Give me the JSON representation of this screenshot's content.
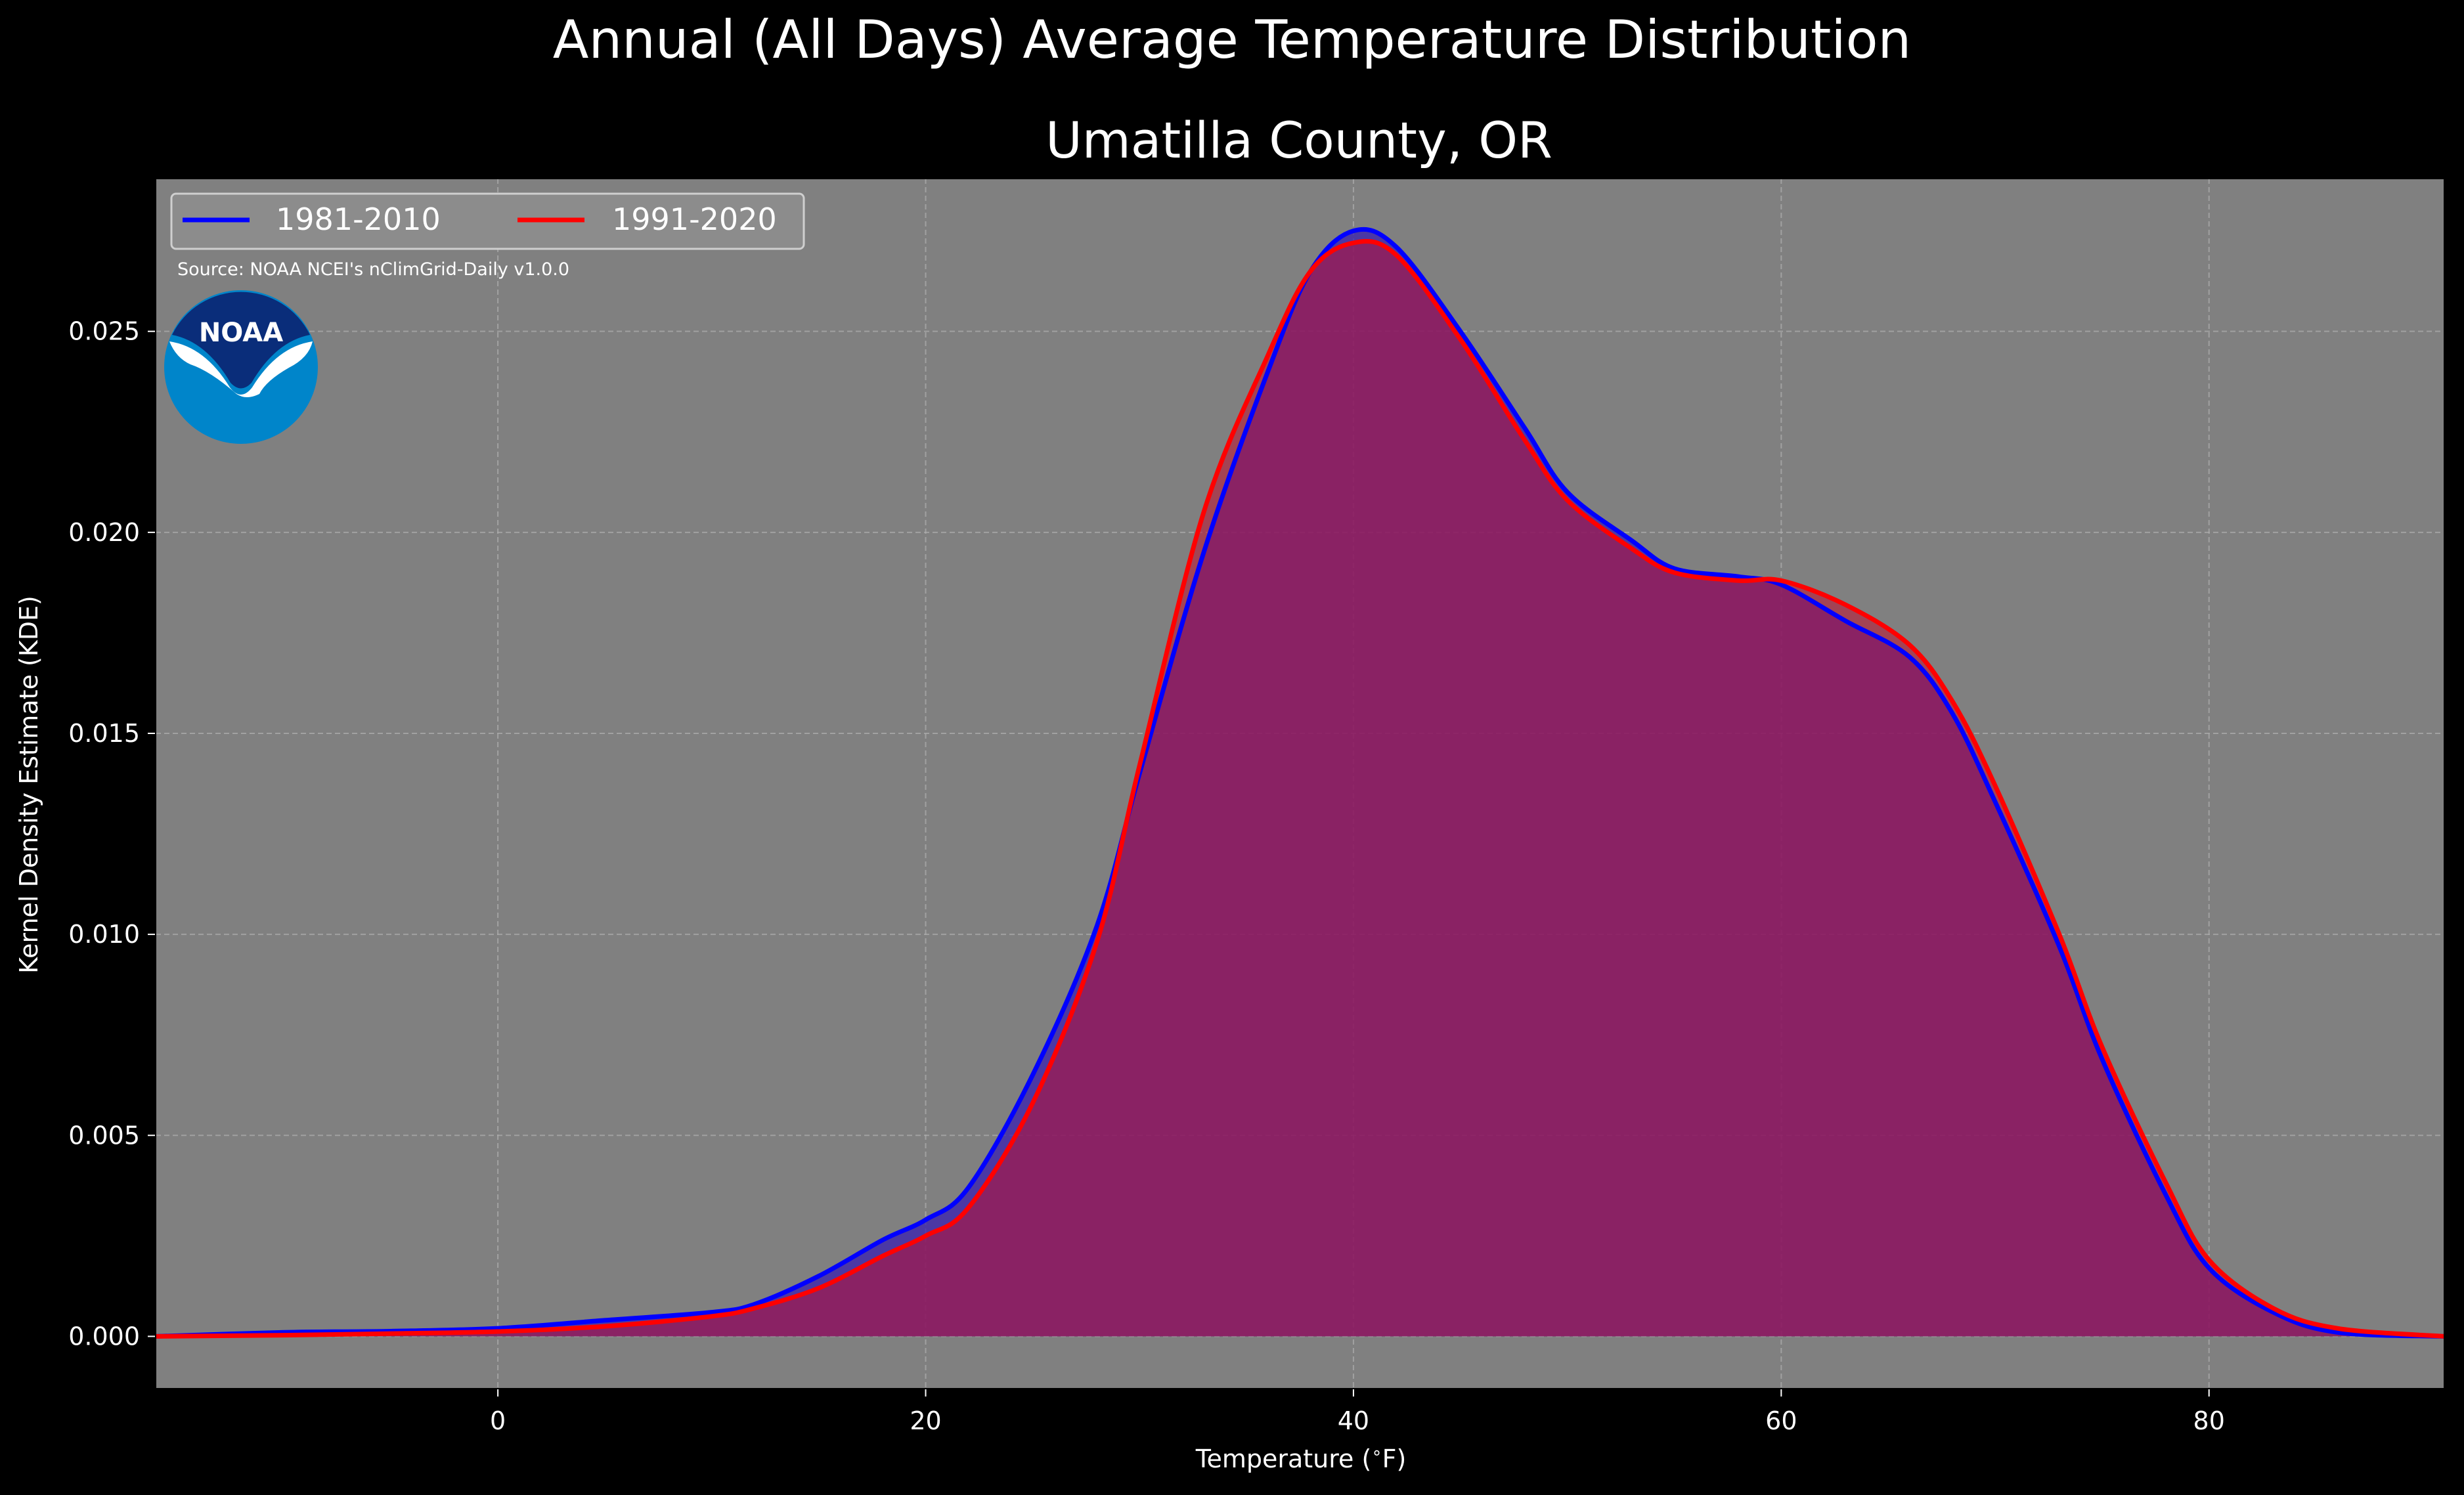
{
  "figure": {
    "suptitle": "Annual (All Days) Average Temperature Distribution",
    "title": "Umatilla County, OR",
    "source_note": "Source: NOAA NCEI's nClimGrid-Daily v1.0.0",
    "logo_text": "NOAA"
  },
  "colors": {
    "background": "#000000",
    "plot_background": "#808080",
    "series_1981": "#0000ff",
    "series_1991": "#ff0000",
    "fill": "#9e1f5c",
    "grid": "#b0b0b0",
    "logo_blue": "#0085ca",
    "logo_navy": "#0a2d7a"
  },
  "chart_data": {
    "type": "area",
    "xlabel": "Temperature ($^\\circ$F)",
    "ylabel": "Kernel Density Estimate (KDE)",
    "xlim": [
      -16,
      91
    ],
    "ylim": [
      -0.0013,
      0.0288
    ],
    "xticks": [
      0,
      20,
      40,
      60,
      80
    ],
    "yticks": [
      0.0,
      0.005,
      0.01,
      0.015,
      0.02,
      0.025
    ],
    "xtick_labels": [
      "0",
      "20",
      "40",
      "60",
      "80"
    ],
    "ytick_labels": [
      "0.000",
      "0.005",
      "0.010",
      "0.015",
      "0.020",
      "0.025"
    ],
    "grid": true,
    "legend_position": "top-left",
    "series": [
      {
        "name": "1981-2010",
        "color": "#0000ff",
        "x": [
          -16,
          -10,
          -5,
          0,
          5,
          10,
          12,
          15,
          18,
          20,
          22,
          25,
          28,
          30,
          33,
          36,
          38,
          40,
          42,
          45,
          48,
          50,
          53,
          55,
          58,
          60,
          63,
          66,
          68,
          70,
          73,
          75,
          78,
          80,
          83,
          86,
          91
        ],
        "y": [
          0.0,
          0.0001,
          0.00013,
          0.0002,
          0.0004,
          0.0006,
          0.0008,
          0.0015,
          0.0024,
          0.0029,
          0.0037,
          0.0065,
          0.0102,
          0.014,
          0.0195,
          0.024,
          0.0265,
          0.0275,
          0.0271,
          0.025,
          0.0226,
          0.021,
          0.0198,
          0.0191,
          0.0189,
          0.0187,
          0.0178,
          0.0169,
          0.0155,
          0.0133,
          0.0097,
          0.0069,
          0.0035,
          0.0017,
          0.0006,
          0.0001,
          0.0
        ]
      },
      {
        "name": "1991-2020",
        "color": "#ff0000",
        "x": [
          -16,
          -10,
          -5,
          0,
          5,
          10,
          12,
          15,
          18,
          20,
          22,
          25,
          28,
          30,
          33,
          36,
          38,
          40,
          42,
          45,
          48,
          50,
          53,
          55,
          58,
          60,
          63,
          66,
          68,
          70,
          73,
          75,
          78,
          80,
          83,
          86,
          91
        ],
        "y": [
          0.0,
          3e-05,
          7e-05,
          0.00012,
          0.00025,
          0.0005,
          0.0007,
          0.0012,
          0.002,
          0.0025,
          0.0032,
          0.0058,
          0.0098,
          0.0142,
          0.0205,
          0.0244,
          0.0265,
          0.0272,
          0.0269,
          0.0248,
          0.0223,
          0.0208,
          0.0196,
          0.019,
          0.0188,
          0.0188,
          0.0182,
          0.0172,
          0.0158,
          0.0137,
          0.01,
          0.0072,
          0.0038,
          0.0019,
          0.0007,
          0.0002,
          0.0
        ]
      }
    ]
  }
}
